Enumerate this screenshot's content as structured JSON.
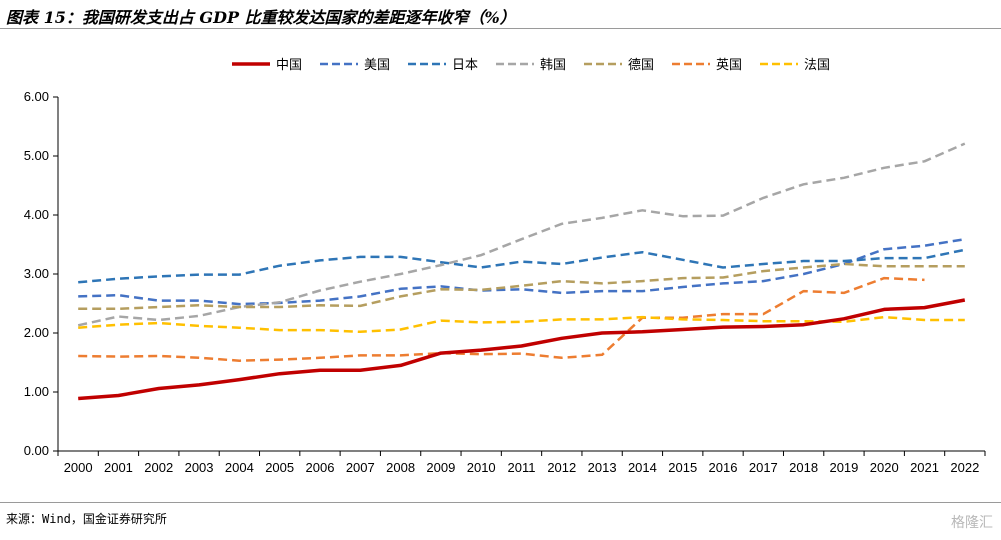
{
  "figure": {
    "title": "图表 15：我国研发支出占 GDP 比重较发达国家的差距逐年收窄（%）",
    "source": "来源：Wind，国金证券研究所",
    "watermark": "格隆汇"
  },
  "chart_data": {
    "type": "line",
    "title": "图表 15：我国研发支出占 GDP 比重较发达国家的差距逐年收窄（%）",
    "xlabel": "",
    "ylabel": "",
    "ylim": [
      0,
      6
    ],
    "yticks": [
      "0.00",
      "1.00",
      "2.00",
      "3.00",
      "4.00",
      "5.00",
      "6.00"
    ],
    "grid": false,
    "legend_position": "top",
    "x": [
      "2000",
      "2001",
      "2002",
      "2003",
      "2004",
      "2005",
      "2006",
      "2007",
      "2008",
      "2009",
      "2010",
      "2011",
      "2012",
      "2013",
      "2014",
      "2015",
      "2016",
      "2017",
      "2018",
      "2019",
      "2020",
      "2021",
      "2022"
    ],
    "series": [
      {
        "name": "中国",
        "color": "#c00000",
        "style": "solid",
        "values": [
          0.89,
          0.94,
          1.06,
          1.12,
          1.21,
          1.31,
          1.37,
          1.37,
          1.45,
          1.66,
          1.71,
          1.78,
          1.91,
          2.0,
          2.02,
          2.06,
          2.1,
          2.11,
          2.14,
          2.24,
          2.4,
          2.43,
          2.56
        ]
      },
      {
        "name": "美国",
        "color": "#4472c4",
        "style": "dashed",
        "values": [
          2.62,
          2.64,
          2.55,
          2.55,
          2.49,
          2.51,
          2.55,
          2.62,
          2.75,
          2.79,
          2.72,
          2.74,
          2.68,
          2.71,
          2.71,
          2.78,
          2.84,
          2.88,
          3.0,
          3.17,
          3.42,
          3.48,
          3.59
        ]
      },
      {
        "name": "日本",
        "color": "#2e75b6",
        "style": "dashed",
        "values": [
          2.86,
          2.92,
          2.96,
          2.99,
          2.99,
          3.14,
          3.23,
          3.29,
          3.29,
          3.2,
          3.11,
          3.21,
          3.17,
          3.28,
          3.37,
          3.24,
          3.11,
          3.17,
          3.22,
          3.22,
          3.27,
          3.27,
          3.41
        ]
      },
      {
        "name": "韩国",
        "color": "#a6a6a6",
        "style": "dashed",
        "values": [
          2.13,
          2.28,
          2.22,
          2.29,
          2.44,
          2.52,
          2.72,
          2.87,
          3.0,
          3.15,
          3.32,
          3.59,
          3.85,
          3.95,
          4.08,
          3.98,
          3.99,
          4.29,
          4.52,
          4.63,
          4.8,
          4.91,
          5.21
        ]
      },
      {
        "name": "德国",
        "color": "#b59e5f",
        "style": "dashed",
        "values": [
          2.41,
          2.41,
          2.44,
          2.47,
          2.44,
          2.44,
          2.47,
          2.46,
          2.62,
          2.74,
          2.73,
          2.8,
          2.88,
          2.84,
          2.88,
          2.93,
          2.94,
          3.05,
          3.11,
          3.17,
          3.13,
          3.13,
          3.13
        ]
      },
      {
        "name": "英国",
        "color": "#ed7d31",
        "style": "dashed",
        "values": [
          1.61,
          1.6,
          1.61,
          1.58,
          1.53,
          1.55,
          1.58,
          1.62,
          1.62,
          1.66,
          1.64,
          1.65,
          1.58,
          1.63,
          2.26,
          2.26,
          2.32,
          2.32,
          2.71,
          2.68,
          2.93,
          2.9,
          null
        ]
      },
      {
        "name": "法国",
        "color": "#ffc000",
        "style": "dashed",
        "values": [
          2.09,
          2.14,
          2.17,
          2.12,
          2.09,
          2.05,
          2.05,
          2.02,
          2.06,
          2.21,
          2.18,
          2.19,
          2.23,
          2.23,
          2.27,
          2.23,
          2.22,
          2.2,
          2.2,
          2.19,
          2.27,
          2.22,
          2.22
        ]
      }
    ]
  }
}
